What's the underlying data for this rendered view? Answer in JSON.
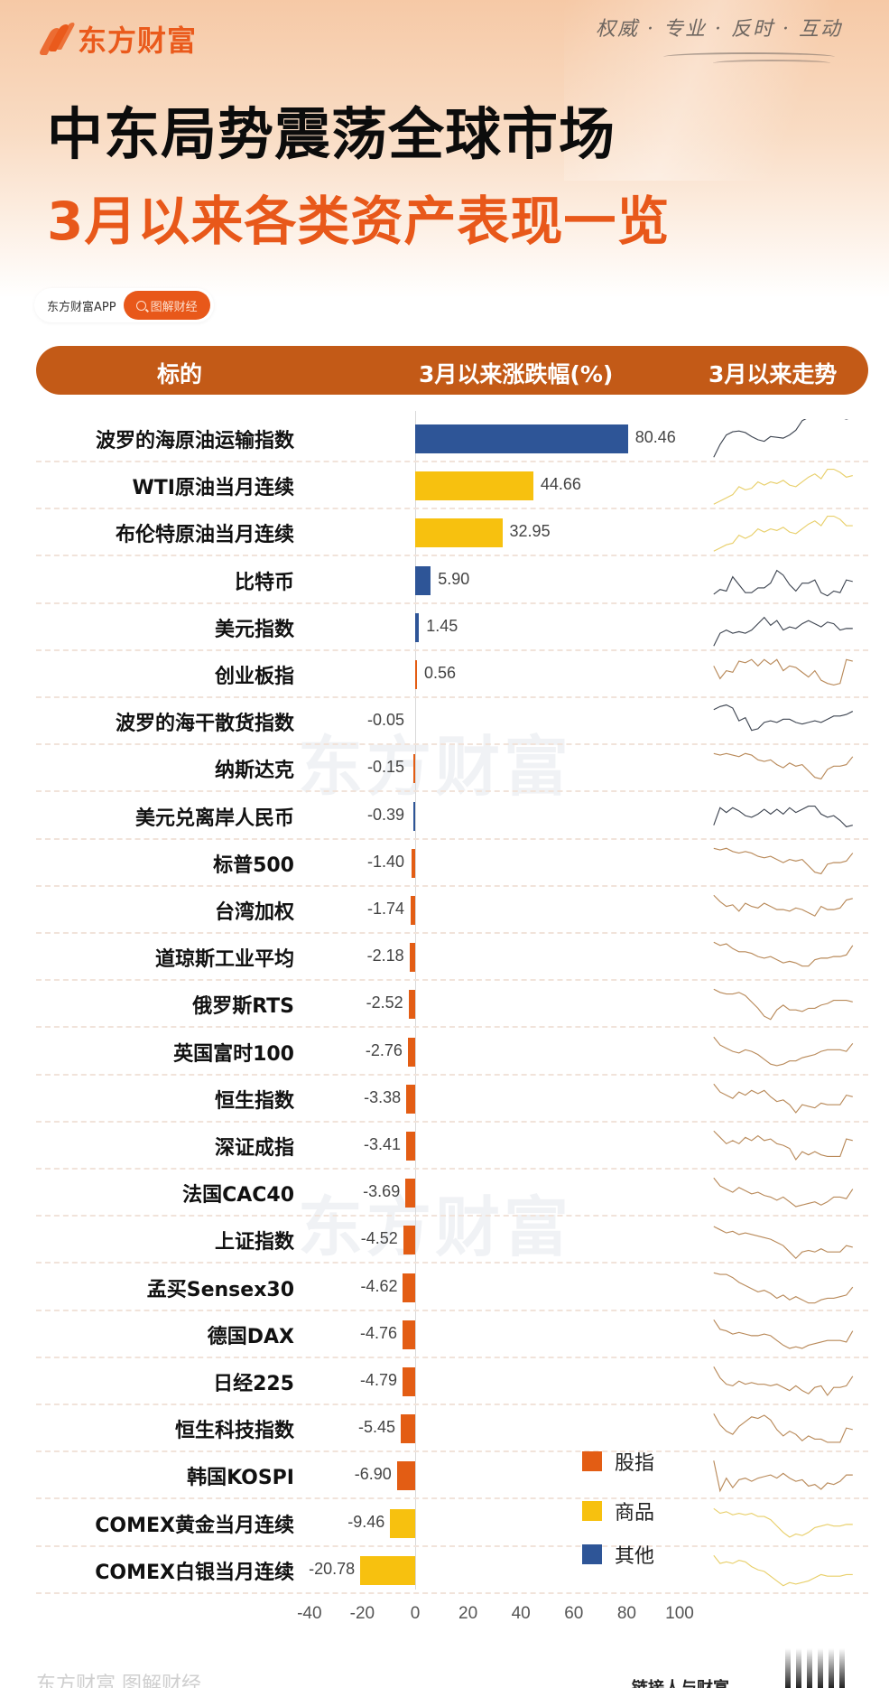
{
  "brand": {
    "name": "东方财富",
    "slogan": "权威 · 专业 · 反时 · 互动",
    "app_label": "东方财富APP",
    "search_label": "图解财经",
    "search_icon": "search-icon",
    "accent": "#e8581a",
    "header_bg": "#c35a17"
  },
  "title": {
    "line1": "中东局势震荡全球市场",
    "line2": "3月以来各类资产表现一览"
  },
  "table_header": {
    "col_name": "标的",
    "col_change": "3月以来涨跌幅(%)",
    "col_trend": "3月以来走势"
  },
  "watermark": "东方财富",
  "legend": [
    {
      "label": "股指",
      "color": "#e35d14"
    },
    {
      "label": "商品",
      "color": "#f7c10f"
    },
    {
      "label": "其他",
      "color": "#2e5597"
    }
  ],
  "axis_ticks": [
    "-40",
    "-20",
    "0",
    "20",
    "40",
    "60",
    "80",
    "100"
  ],
  "footer": {
    "left": "东方财富 图解财经",
    "right": "链接人与财富"
  },
  "chart_data": {
    "type": "bar",
    "orientation": "horizontal",
    "title": "3月以来各类资产表现一览",
    "xlabel": "3月以来涨跌幅(%)",
    "ylabel": "标的",
    "xlim": [
      -40,
      100
    ],
    "xticks": [
      -40,
      -20,
      0,
      20,
      40,
      60,
      80,
      100
    ],
    "grid": false,
    "legend_position": "inside-lower-right",
    "categories": [
      "波罗的海原油运输指数",
      "WTI原油当月连续",
      "布伦特原油当月连续",
      "比特币",
      "美元指数",
      "创业板指",
      "波罗的海干散货指数",
      "纳斯达克",
      "美元兑离岸人民币",
      "标普500",
      "台湾加权",
      "道琼斯工业平均",
      "俄罗斯RTS",
      "英国富时100",
      "恒生指数",
      "深证成指",
      "法国CAC40",
      "上证指数",
      "孟买Sensex30",
      "德国DAX",
      "日经225",
      "恒生科技指数",
      "韩国KOSPI",
      "COMEX黄金当月连续",
      "COMEX白银当月连续"
    ],
    "values": [
      80.46,
      44.66,
      32.95,
      5.9,
      1.45,
      0.56,
      -0.05,
      -0.15,
      -0.39,
      -1.4,
      -1.74,
      -2.18,
      -2.52,
      -2.76,
      -3.38,
      -3.41,
      -3.69,
      -4.52,
      -4.62,
      -4.76,
      -4.79,
      -5.45,
      -6.9,
      -9.46,
      -20.78
    ],
    "groups": [
      "其他",
      "商品",
      "商品",
      "其他",
      "其他",
      "股指",
      "其他",
      "股指",
      "其他",
      "股指",
      "股指",
      "股指",
      "股指",
      "股指",
      "股指",
      "股指",
      "股指",
      "股指",
      "股指",
      "股指",
      "股指",
      "股指",
      "股指",
      "商品",
      "商品"
    ],
    "series_legend": [
      "股指",
      "商品",
      "其他"
    ]
  },
  "rows": [
    {
      "name": "波罗的海原油运输指数",
      "value": "80.46",
      "v": 80.46,
      "group": "其他",
      "spark": [
        2,
        18,
        30,
        34,
        35,
        33,
        28,
        24,
        22,
        28,
        27,
        26,
        30,
        36,
        48,
        52,
        54,
        54,
        53,
        53,
        52,
        50,
        52
      ]
    },
    {
      "name": "WTI原油当月连续",
      "value": "44.66",
      "v": 44.66,
      "group": "商品",
      "spark": [
        2,
        6,
        10,
        14,
        24,
        20,
        22,
        30,
        26,
        30,
        28,
        32,
        26,
        24,
        30,
        36,
        40,
        34,
        46,
        46,
        42,
        36,
        38
      ]
    },
    {
      "name": "布伦特原油当月连续",
      "value": "32.95",
      "v": 32.95,
      "group": "商品",
      "spark": [
        2,
        6,
        10,
        12,
        22,
        18,
        22,
        30,
        26,
        30,
        28,
        32,
        26,
        24,
        30,
        36,
        40,
        34,
        46,
        46,
        42,
        34,
        34
      ]
    },
    {
      "name": "比特币",
      "value": "5.90",
      "v": 5.9,
      "group": "其他",
      "spark": [
        8,
        14,
        12,
        30,
        20,
        10,
        10,
        16,
        16,
        22,
        38,
        32,
        20,
        12,
        22,
        22,
        26,
        10,
        6,
        12,
        10,
        26,
        24
      ]
    },
    {
      "name": "美元指数",
      "value": "1.45",
      "v": 1.45,
      "group": "其他",
      "spark": [
        2,
        18,
        22,
        18,
        20,
        18,
        22,
        30,
        38,
        28,
        34,
        22,
        26,
        24,
        30,
        34,
        30,
        26,
        32,
        30,
        22,
        24,
        24
      ]
    },
    {
      "name": "创业板指",
      "value": "0.56",
      "v": 0.56,
      "group": "股指",
      "spark": [
        36,
        20,
        30,
        28,
        42,
        40,
        44,
        36,
        44,
        38,
        44,
        30,
        36,
        34,
        28,
        22,
        30,
        18,
        14,
        12,
        14,
        44,
        42
      ]
    },
    {
      "name": "波罗的海干散货指数",
      "value": "-0.05",
      "v": -0.05,
      "group": "其他",
      "spark": [
        40,
        44,
        46,
        42,
        26,
        30,
        14,
        16,
        24,
        26,
        24,
        28,
        28,
        24,
        22,
        24,
        26,
        24,
        28,
        32,
        32,
        34,
        38
      ]
    },
    {
      "name": "纳斯达克",
      "value": "-0.15",
      "v": -0.15,
      "group": "股指",
      "spark": [
        44,
        42,
        44,
        42,
        40,
        44,
        42,
        36,
        34,
        36,
        30,
        26,
        32,
        28,
        30,
        22,
        14,
        12,
        24,
        28,
        28,
        30,
        40
      ]
    },
    {
      "name": "美元兑离岸人民币",
      "value": "-0.39",
      "v": -0.39,
      "group": "其他",
      "spark": [
        14,
        36,
        30,
        36,
        32,
        26,
        24,
        28,
        34,
        28,
        34,
        28,
        36,
        30,
        34,
        38,
        38,
        28,
        24,
        26,
        20,
        12,
        14
      ]
    },
    {
      "name": "标普500",
      "value": "-1.40",
      "v": -1.4,
      "group": "股指",
      "spark": [
        44,
        42,
        44,
        40,
        38,
        40,
        38,
        34,
        32,
        34,
        30,
        26,
        30,
        28,
        30,
        22,
        14,
        12,
        24,
        26,
        26,
        28,
        38
      ]
    },
    {
      "name": "台湾加权",
      "value": "-1.74",
      "v": -1.74,
      "group": "股指",
      "spark": [
        44,
        36,
        30,
        32,
        24,
        34,
        30,
        28,
        34,
        30,
        26,
        26,
        24,
        28,
        26,
        22,
        18,
        30,
        26,
        26,
        28,
        38,
        40
      ]
    },
    {
      "name": "道琼斯工业平均",
      "value": "-2.18",
      "v": -2.18,
      "group": "股指",
      "spark": [
        44,
        40,
        42,
        36,
        32,
        32,
        30,
        26,
        24,
        26,
        22,
        18,
        20,
        18,
        14,
        14,
        22,
        24,
        24,
        26,
        26,
        28,
        40
      ]
    },
    {
      "name": "俄罗斯RTS",
      "value": "-2.52",
      "v": -2.52,
      "group": "股指",
      "spark": [
        44,
        40,
        38,
        38,
        40,
        36,
        28,
        20,
        10,
        6,
        18,
        24,
        18,
        18,
        16,
        20,
        20,
        24,
        26,
        30,
        30,
        30,
        28
      ]
    },
    {
      "name": "英国富时100",
      "value": "-2.76",
      "v": -2.76,
      "group": "股指",
      "spark": [
        44,
        34,
        30,
        26,
        24,
        28,
        26,
        22,
        16,
        10,
        8,
        10,
        14,
        14,
        18,
        20,
        22,
        26,
        28,
        28,
        28,
        26,
        36
      ]
    },
    {
      "name": "恒生指数",
      "value": "-3.38",
      "v": -3.38,
      "group": "股指",
      "spark": [
        44,
        34,
        30,
        26,
        34,
        30,
        36,
        32,
        36,
        28,
        22,
        24,
        18,
        8,
        18,
        16,
        14,
        20,
        18,
        18,
        18,
        30,
        28
      ]
    },
    {
      "name": "深证成指",
      "value": "-3.41",
      "v": -3.41,
      "group": "股指",
      "spark": [
        44,
        36,
        28,
        32,
        28,
        36,
        32,
        38,
        32,
        34,
        28,
        26,
        22,
        8,
        18,
        14,
        18,
        14,
        12,
        12,
        12,
        34,
        32
      ]
    },
    {
      "name": "法国CAC40",
      "value": "-3.69",
      "v": -3.69,
      "group": "股指",
      "spark": [
        44,
        34,
        30,
        26,
        32,
        28,
        24,
        26,
        22,
        20,
        16,
        20,
        14,
        8,
        10,
        12,
        14,
        10,
        14,
        20,
        20,
        18,
        30
      ]
    },
    {
      "name": "上证指数",
      "value": "-4.52",
      "v": -4.52,
      "group": "股指",
      "spark": [
        42,
        38,
        34,
        36,
        32,
        34,
        32,
        30,
        28,
        26,
        22,
        18,
        10,
        2,
        10,
        12,
        10,
        14,
        10,
        10,
        10,
        18,
        16
      ]
    },
    {
      "name": "孟买Sensex30",
      "value": "-4.62",
      "v": -4.62,
      "group": "股指",
      "spark": [
        44,
        42,
        42,
        38,
        32,
        28,
        24,
        20,
        22,
        18,
        12,
        16,
        10,
        14,
        10,
        6,
        6,
        10,
        12,
        12,
        14,
        16,
        26
      ]
    },
    {
      "name": "德国DAX",
      "value": "-4.76",
      "v": -4.76,
      "group": "股指",
      "spark": [
        44,
        32,
        30,
        26,
        28,
        26,
        24,
        24,
        26,
        24,
        18,
        12,
        8,
        10,
        8,
        12,
        14,
        16,
        18,
        18,
        18,
        16,
        30
      ]
    },
    {
      "name": "日经225",
      "value": "-4.79",
      "v": -4.79,
      "group": "股指",
      "spark": [
        44,
        30,
        22,
        20,
        26,
        22,
        24,
        22,
        22,
        20,
        22,
        18,
        14,
        20,
        14,
        10,
        18,
        20,
        8,
        18,
        18,
        20,
        32
      ]
    },
    {
      "name": "恒生科技指数",
      "value": "-5.45",
      "v": -5.45,
      "group": "股指",
      "spark": [
        44,
        30,
        22,
        18,
        28,
        34,
        40,
        38,
        42,
        36,
        24,
        16,
        22,
        18,
        10,
        16,
        12,
        12,
        8,
        8,
        8,
        26,
        24
      ]
    },
    {
      "name": "韩国KOSPI",
      "value": "-6.90",
      "v": -6.9,
      "group": "股指",
      "spark": [
        44,
        6,
        22,
        10,
        20,
        22,
        18,
        22,
        24,
        26,
        22,
        28,
        22,
        18,
        20,
        12,
        14,
        8,
        16,
        14,
        18,
        26,
        26
      ]
    },
    {
      "name": "COMEX黄金当月连续",
      "value": "-9.46",
      "v": -9.46,
      "group": "商品",
      "spark": [
        44,
        38,
        40,
        36,
        38,
        36,
        38,
        34,
        34,
        30,
        22,
        14,
        8,
        12,
        10,
        14,
        20,
        22,
        24,
        22,
        22,
        24,
        24
      ]
    },
    {
      "name": "COMEX白银当月连续",
      "value": "-20.78",
      "v": -20.78,
      "group": "商品",
      "spark": [
        44,
        34,
        36,
        34,
        38,
        36,
        30,
        26,
        24,
        18,
        12,
        6,
        10,
        8,
        10,
        12,
        16,
        20,
        18,
        18,
        18,
        20,
        20
      ]
    }
  ]
}
